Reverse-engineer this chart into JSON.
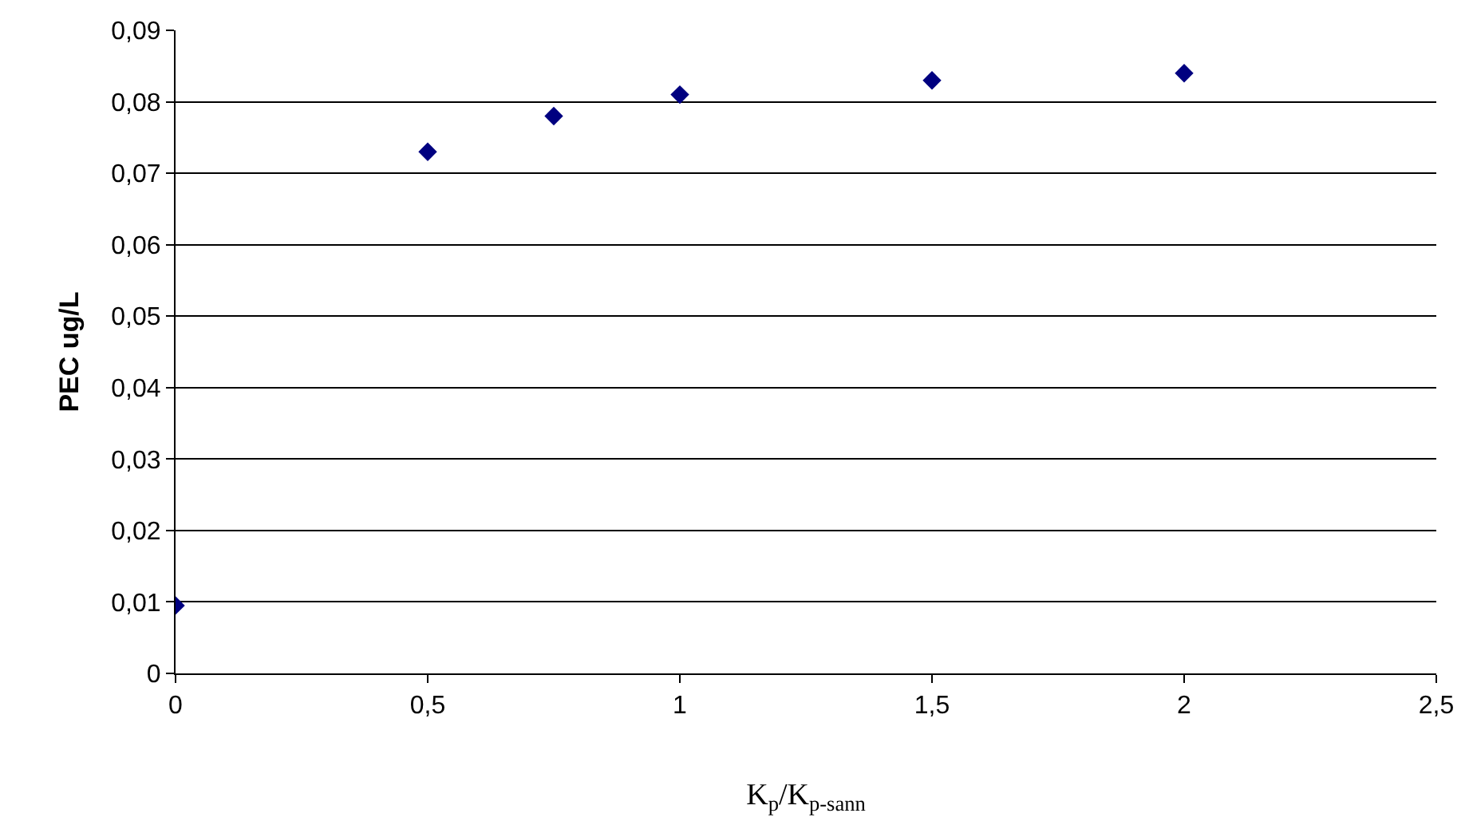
{
  "chart_data": {
    "type": "scatter",
    "xlabel": "K$_{p}$/K$_{p-sann}$",
    "ylabel": "PEC ug/L",
    "x": [
      0,
      0.5,
      0.75,
      1,
      1.5,
      2
    ],
    "series": [
      {
        "color": "#000080",
        "values": [
          0.0095,
          0.073,
          0.078,
          0.081,
          0.083,
          0.084
        ]
      }
    ],
    "xlim": [
      0,
      2.5
    ],
    "ylim": [
      0,
      0.09
    ],
    "xticks": [
      0,
      {
        "value": 0.5,
        "label": "0,5"
      },
      1,
      {
        "value": 1.5,
        "label": "1,5"
      },
      2,
      {
        "value": 2.5,
        "label": "2,5"
      }
    ],
    "yticks": [
      0,
      {
        "value": 0.01,
        "label": "0,01"
      },
      {
        "value": 0.02,
        "label": "0,02"
      },
      {
        "value": 0.03,
        "label": "0,03"
      },
      {
        "value": 0.04,
        "label": "0,04"
      },
      {
        "value": 0.05,
        "label": "0,05"
      },
      {
        "value": 0.06,
        "label": "0,06"
      },
      {
        "value": 0.07,
        "label": "0,07"
      },
      {
        "value": 0.08,
        "label": "0,08"
      },
      {
        "value": 0.09,
        "label": "0,09"
      }
    ],
    "grid": "y",
    "marker": "diamond"
  }
}
